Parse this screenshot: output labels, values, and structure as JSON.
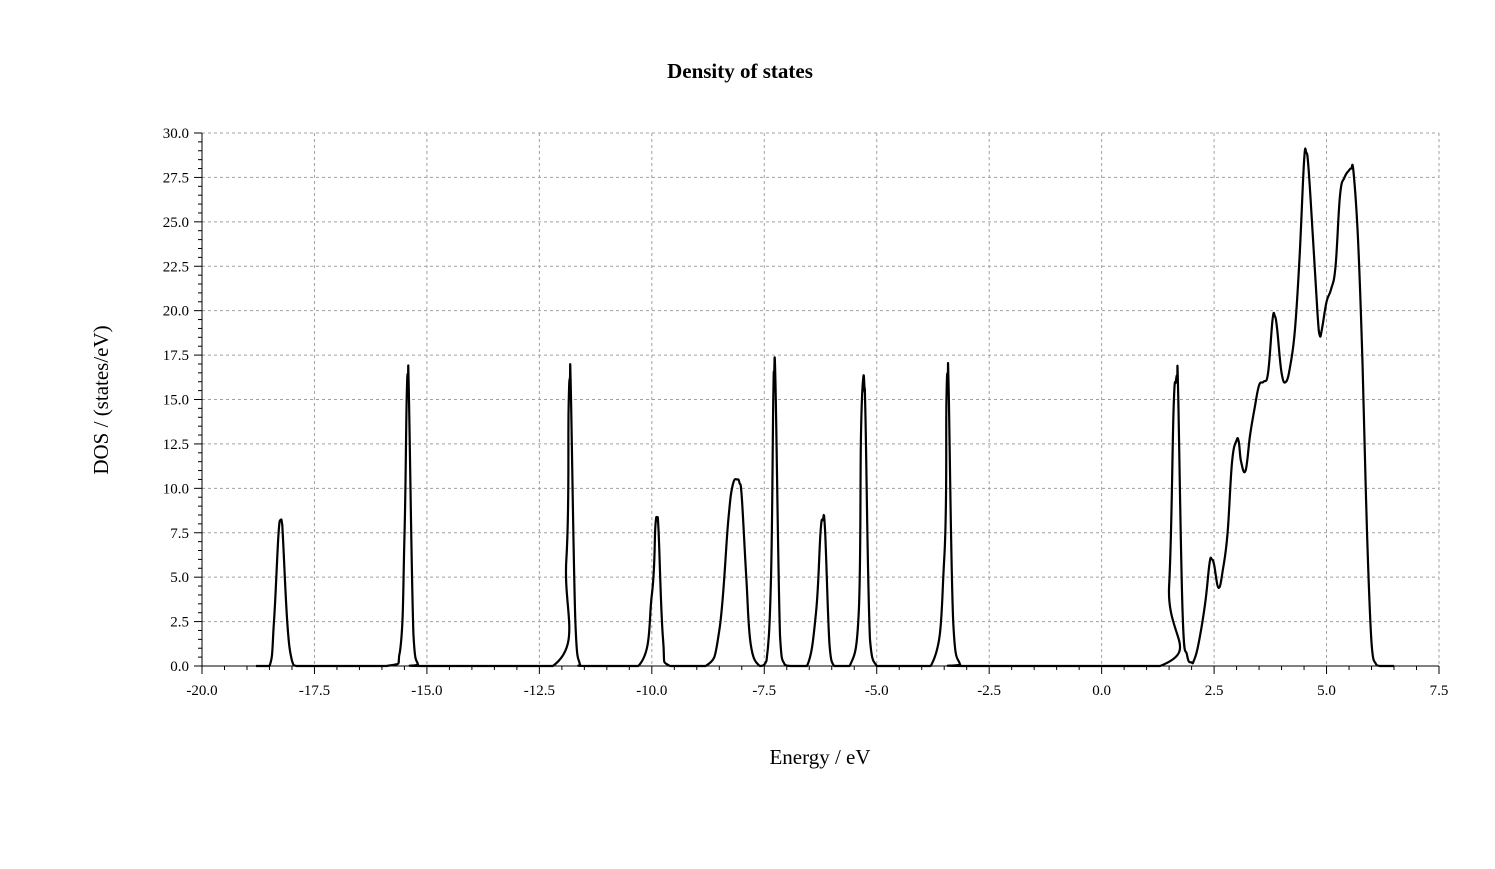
{
  "chart_data": {
    "type": "line",
    "title": "Density of states",
    "xlabel": "Energy / eV",
    "ylabel": "DOS / (states/eV)",
    "xlim": [
      -20.0,
      7.5
    ],
    "ylim": [
      0.0,
      30.0
    ],
    "grid": true,
    "x_ticks": [
      "-20.0",
      "-17.5",
      "-15.0",
      "-12.5",
      "-10.0",
      "-7.5",
      "-5.0",
      "-2.5",
      "0.0",
      "2.5",
      "5.0",
      "7.5"
    ],
    "x_tick_values": [
      -20.0,
      -17.5,
      -15.0,
      -12.5,
      -10.0,
      -7.5,
      -5.0,
      -2.5,
      0.0,
      2.5,
      5.0,
      7.5
    ],
    "y_ticks": [
      "0.0",
      "2.5",
      "5.0",
      "7.5",
      "10.0",
      "12.5",
      "15.0",
      "17.5",
      "20.0",
      "22.5",
      "25.0",
      "27.5",
      "30.0"
    ],
    "y_tick_values": [
      0.0,
      2.5,
      5.0,
      7.5,
      10.0,
      12.5,
      15.0,
      17.5,
      20.0,
      22.5,
      25.0,
      27.5,
      30.0
    ],
    "series": [
      {
        "color": "#000000",
        "x": [
          -18.8,
          -18.5,
          -18.4,
          -18.3,
          -18.25,
          -18.22,
          -18.2,
          -18.1,
          -18.0,
          -17.9,
          -17.6,
          -15.9,
          -15.6,
          -15.5,
          -15.45,
          -15.42,
          -15.4,
          -15.3,
          -15.2,
          -15.1,
          -12.2,
          -11.9,
          -11.85,
          -11.82,
          -11.8,
          -11.7,
          -11.6,
          -11.5,
          -10.3,
          -10.0,
          -9.92,
          -9.88,
          -9.85,
          -9.75,
          -9.6,
          -8.8,
          -8.5,
          -8.3,
          -8.2,
          -8.1,
          -8.05,
          -8.0,
          -7.9,
          -7.8,
          -7.6,
          -7.45,
          -7.35,
          -7.3,
          -7.28,
          -7.25,
          -7.15,
          -7.05,
          -6.9,
          -6.55,
          -6.35,
          -6.25,
          -6.2,
          -6.15,
          -6.05,
          -5.95,
          -5.85,
          -5.6,
          -5.4,
          -5.35,
          -5.3,
          -5.27,
          -5.25,
          -5.15,
          -5.0,
          -4.85,
          -3.8,
          -3.5,
          -3.45,
          -3.42,
          -3.4,
          -3.3,
          -3.15,
          -3.0,
          1.3,
          1.5,
          1.6,
          1.65,
          1.68,
          1.7,
          1.8,
          1.9,
          2.0,
          2.05,
          2.15,
          2.3,
          2.4,
          2.45,
          2.5,
          2.6,
          2.7,
          2.8,
          2.9,
          3.0,
          3.05,
          3.1,
          3.2,
          3.3,
          3.4,
          3.5,
          3.6,
          3.7,
          3.8,
          3.85,
          3.9,
          4.0,
          4.1,
          4.2,
          4.3,
          4.4,
          4.5,
          4.55,
          4.6,
          4.7,
          4.8,
          4.85,
          4.9,
          5.0,
          5.1,
          5.2,
          5.3,
          5.4,
          5.5,
          5.55,
          5.6,
          5.7,
          5.8,
          5.9,
          6.0,
          6.1,
          6.2,
          6.5
        ],
        "y": [
          0.0,
          0.0,
          2.5,
          7.4,
          8.2,
          8.0,
          7.2,
          2.3,
          0.3,
          0.0,
          0.0,
          0.0,
          0.8,
          7.2,
          15.0,
          16.4,
          15.2,
          1.8,
          0.1,
          0.0,
          0.0,
          6.0,
          14.5,
          16.2,
          15.5,
          2.5,
          0.1,
          0.0,
          0.0,
          4.0,
          7.9,
          8.2,
          7.6,
          1.5,
          0.0,
          0.0,
          2.0,
          8.2,
          10.2,
          10.5,
          10.3,
          9.5,
          5.0,
          1.2,
          0.0,
          0.3,
          5.0,
          15.0,
          16.5,
          15.8,
          1.7,
          0.1,
          0.0,
          0.0,
          3.0,
          7.5,
          8.2,
          7.7,
          1.2,
          0.0,
          0.0,
          0.0,
          3.0,
          13.0,
          16.2,
          15.5,
          14.0,
          1.5,
          0.0,
          0.0,
          0.0,
          6.0,
          15.0,
          16.4,
          15.5,
          2.5,
          0.1,
          0.0,
          0.0,
          4.5,
          14.5,
          16.0,
          16.3,
          15.5,
          3.0,
          0.6,
          0.2,
          0.3,
          1.2,
          3.5,
          5.8,
          6.0,
          5.7,
          4.4,
          5.5,
          7.5,
          11.5,
          12.7,
          12.6,
          11.5,
          11.0,
          13.0,
          14.5,
          15.8,
          16.0,
          16.5,
          19.5,
          19.7,
          19.0,
          16.5,
          16.0,
          17.0,
          19.0,
          23.0,
          28.4,
          28.9,
          28.0,
          24.0,
          19.8,
          18.6,
          19.0,
          20.5,
          21.2,
          22.5,
          26.5,
          27.5,
          27.9,
          28.0,
          27.8,
          24.0,
          17.0,
          7.5,
          1.3,
          0.1,
          0.0,
          0.0
        ]
      }
    ]
  }
}
